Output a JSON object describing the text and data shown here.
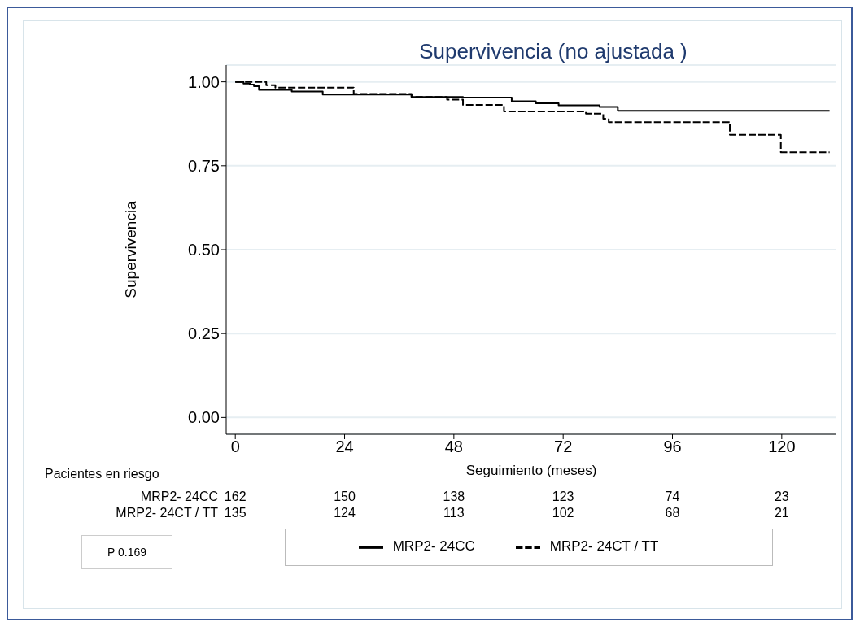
{
  "chart_data": {
    "type": "step",
    "title": "Supervivencia (no ajustada )",
    "xlabel": "Seguimiento (meses)",
    "ylabel": "Supervivencia",
    "xlim": [
      -2,
      132
    ],
    "xticks": [
      0,
      24,
      48,
      72,
      96,
      120
    ],
    "ylim": [
      -0.05,
      1.05
    ],
    "yticks": [
      {
        "value": 0,
        "label": "0.00"
      },
      {
        "value": 0.25,
        "label": "0.25"
      },
      {
        "value": 0.5,
        "label": "0.50"
      },
      {
        "value": 0.75,
        "label": "0.75"
      },
      {
        "value": 1,
        "label": "1.00"
      }
    ],
    "grid": "y",
    "legend": "bottom",
    "marker": "none",
    "series": [
      {
        "name": "MRP2- 24CC",
        "color": "#000000",
        "line_style": "solid",
        "x": [
          0,
          1.8,
          3.2,
          4.1,
          5.2,
          12.4,
          19.2,
          38.7,
          50,
          60.7,
          66,
          71,
          80,
          84,
          130.5
        ],
        "values": [
          1,
          0.995,
          0.992,
          0.987,
          0.976,
          0.971,
          0.962,
          0.955,
          0.953,
          0.942,
          0.936,
          0.93,
          0.925,
          0.914,
          0.914
        ]
      },
      {
        "name": "MRP2- 24CT / TT",
        "color": "#000000",
        "line_style": "dashed",
        "x": [
          0,
          6.8,
          8.8,
          26,
          38.7,
          46.5,
          50,
          59,
          77,
          80.8,
          82,
          108.6,
          119.8,
          130.5
        ],
        "values": [
          1,
          0.99,
          0.983,
          0.964,
          0.955,
          0.947,
          0.931,
          0.912,
          0.905,
          0.89,
          0.88,
          0.842,
          0.79,
          0.79
        ]
      }
    ],
    "annotations": [
      "Pacientes en riesgo",
      "MRP2- 24CC",
      "162",
      "150",
      "138",
      "123",
      "74",
      "23",
      "MRP2- 24CT / TT",
      "135",
      "124",
      "113",
      "102",
      "68",
      "21",
      "P 0.169"
    ]
  }
}
